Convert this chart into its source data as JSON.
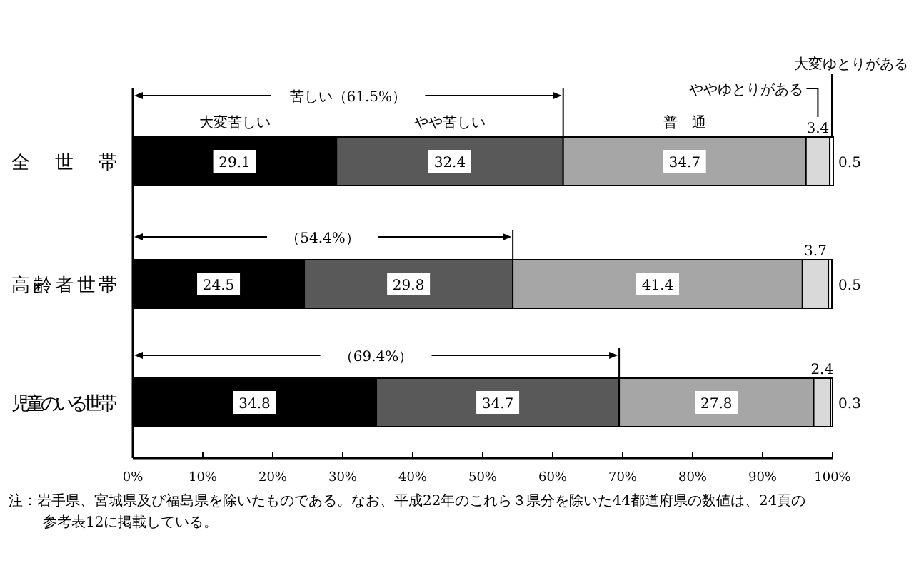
{
  "chart_data": {
    "type": "bar",
    "orientation": "horizontal",
    "stacked": true,
    "categories": [
      "全　世　帯",
      "高齢者世帯",
      "児童のいる世帯"
    ],
    "series": [
      {
        "name": "大変苦しい",
        "color": "#000000",
        "values": [
          29.1,
          24.5,
          34.8
        ]
      },
      {
        "name": "やや苦しい",
        "color": "#595959",
        "values": [
          32.4,
          29.8,
          34.7
        ]
      },
      {
        "name": "普　通",
        "color": "#a6a6a6",
        "values": [
          34.7,
          41.4,
          27.8
        ]
      },
      {
        "name": "ややゆとりがある",
        "color": "#d9d9d9",
        "values": [
          3.4,
          3.7,
          2.4
        ]
      },
      {
        "name": "大変ゆとりがある",
        "color": "#ffffff",
        "values": [
          0.5,
          0.5,
          0.3
        ]
      }
    ],
    "xlim": [
      0,
      100
    ],
    "xticks": [
      {
        "value": 0,
        "label": "0%"
      },
      {
        "value": 10,
        "label": "10%"
      },
      {
        "value": 20,
        "label": "20%"
      },
      {
        "value": 30,
        "label": "30%"
      },
      {
        "value": 40,
        "label": "40%"
      },
      {
        "value": 50,
        "label": "50%"
      },
      {
        "value": 60,
        "label": "60%"
      },
      {
        "value": 70,
        "label": "70%"
      },
      {
        "value": 80,
        "label": "80%"
      },
      {
        "value": 90,
        "label": "90%"
      },
      {
        "value": 100,
        "label": "100%"
      }
    ],
    "data_labels": true,
    "annotations": [
      "苦しい（61.5%）",
      "（54.4%）",
      "（69.4%）",
      "注：岩手県、宮城県及び福島県を除いたものである。なお、平成22年のこれら３県分を除いた44都道府県の数値は、24頁の参考表12に掲載している。"
    ]
  }
}
